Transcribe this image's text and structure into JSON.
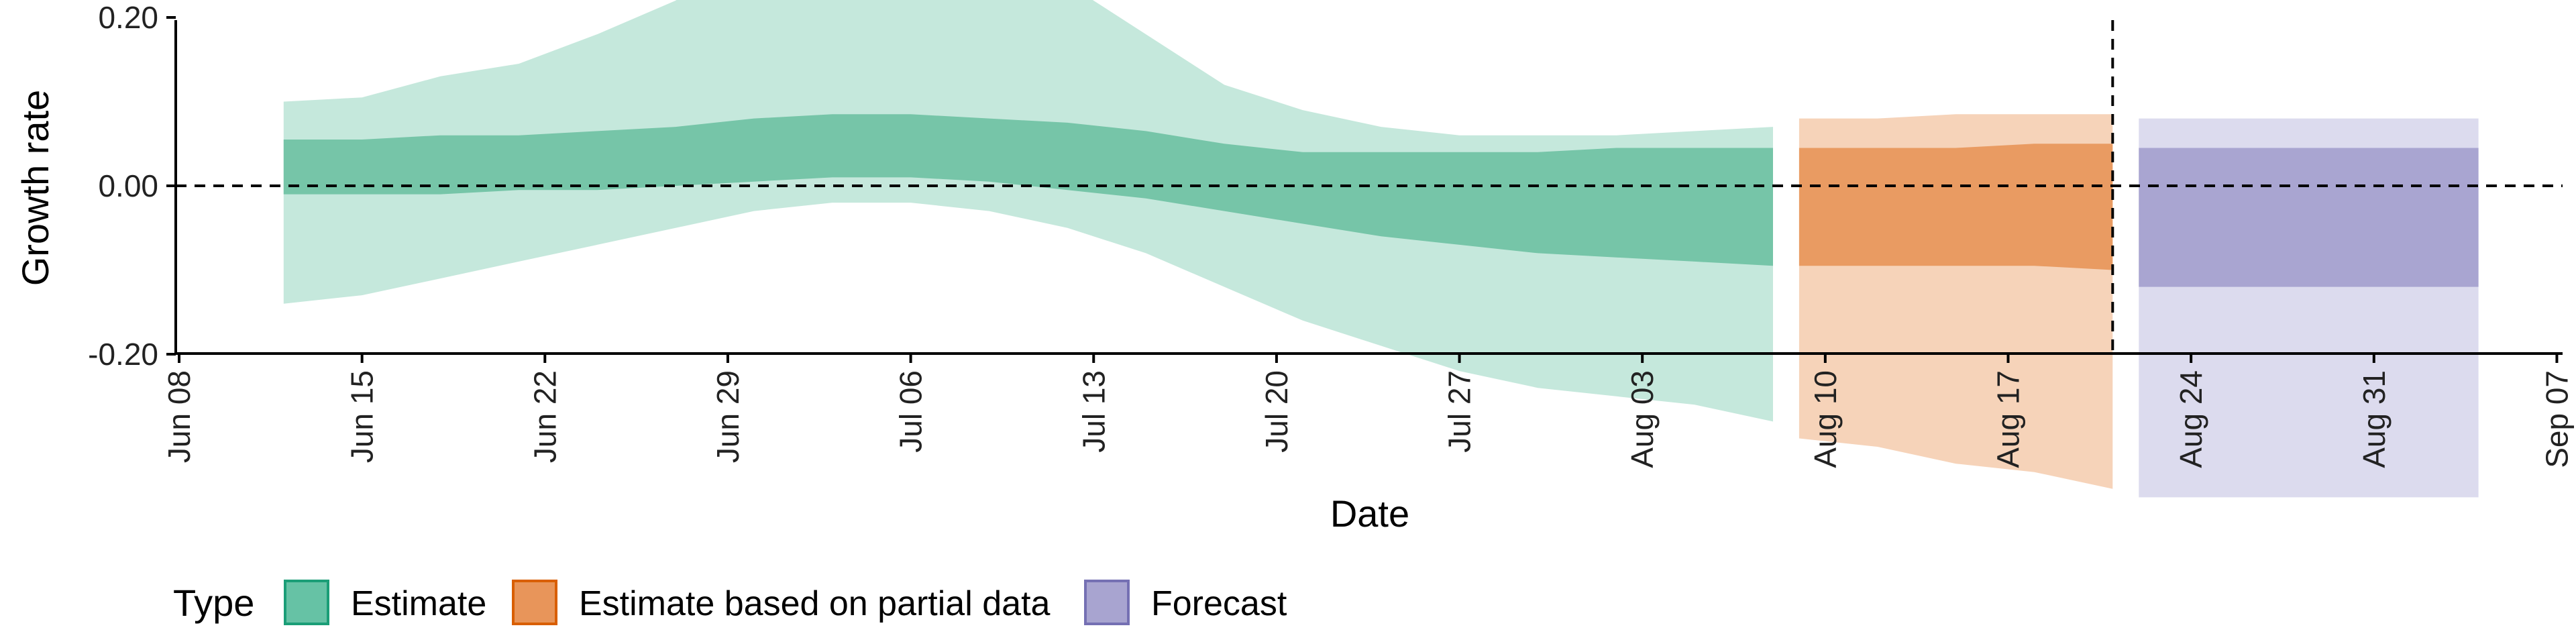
{
  "chart_data": {
    "type": "area",
    "xlabel": "Date",
    "ylabel": "Growth rate",
    "ylim": [
      -0.4,
      0.4
    ],
    "y_ticks": [
      {
        "value": 0.2,
        "label": "0.20"
      },
      {
        "value": 0.0,
        "label": "0.00"
      },
      {
        "value": -0.2,
        "label": "-0.20"
      }
    ],
    "x_ticks": [
      {
        "date": "2020-06-08",
        "label": "Jun 08"
      },
      {
        "date": "2020-06-15",
        "label": "Jun 15"
      },
      {
        "date": "2020-06-22",
        "label": "Jun 22"
      },
      {
        "date": "2020-06-29",
        "label": "Jun 29"
      },
      {
        "date": "2020-07-06",
        "label": "Jul 06"
      },
      {
        "date": "2020-07-13",
        "label": "Jul 13"
      },
      {
        "date": "2020-07-20",
        "label": "Jul 20"
      },
      {
        "date": "2020-07-27",
        "label": "Jul 27"
      },
      {
        "date": "2020-08-03",
        "label": "Aug 03"
      },
      {
        "date": "2020-08-10",
        "label": "Aug 10"
      },
      {
        "date": "2020-08-17",
        "label": "Aug 17"
      },
      {
        "date": "2020-08-24",
        "label": "Aug 24"
      },
      {
        "date": "2020-08-31",
        "label": "Aug 31"
      },
      {
        "date": "2020-09-07",
        "label": "Sep 07"
      }
    ],
    "xlim": [
      "2020-06-08",
      "2020-09-09"
    ],
    "reference_line_y": 0.0,
    "vertical_line_date": "2020-08-21",
    "legend": {
      "title": "Type",
      "position": "bottom-left",
      "entries": [
        {
          "label": "Estimate",
          "color": "#66c2a5",
          "border": "#1b9e77"
        },
        {
          "label": "Estimate based on partial data",
          "color": "#e8955a",
          "border": "#d95f02"
        },
        {
          "label": "Forecast",
          "color": "#a8a4d0",
          "border": "#7570b3"
        }
      ]
    },
    "series": [
      {
        "type": "Estimate",
        "outer_color": "#c5e8dc",
        "inner_color": "#76c5a8",
        "points": [
          {
            "date": "2020-06-12",
            "lo90": -0.14,
            "hi90": 0.1,
            "lo50": -0.01,
            "hi50": 0.055
          },
          {
            "date": "2020-06-15",
            "lo90": -0.13,
            "hi90": 0.105,
            "lo50": -0.01,
            "hi50": 0.055
          },
          {
            "date": "2020-06-18",
            "lo90": -0.11,
            "hi90": 0.13,
            "lo50": -0.01,
            "hi50": 0.06
          },
          {
            "date": "2020-06-21",
            "lo90": -0.09,
            "hi90": 0.145,
            "lo50": -0.005,
            "hi50": 0.06
          },
          {
            "date": "2020-06-24",
            "lo90": -0.07,
            "hi90": 0.18,
            "lo50": -0.005,
            "hi50": 0.065
          },
          {
            "date": "2020-06-27",
            "lo90": -0.05,
            "hi90": 0.22,
            "lo50": 0.0,
            "hi50": 0.07
          },
          {
            "date": "2020-06-30",
            "lo90": -0.03,
            "hi90": 0.29,
            "lo50": 0.005,
            "hi50": 0.08
          },
          {
            "date": "2020-07-03",
            "lo90": -0.02,
            "hi90": 0.35,
            "lo50": 0.01,
            "hi50": 0.085
          },
          {
            "date": "2020-07-06",
            "lo90": -0.02,
            "hi90": 0.35,
            "lo50": 0.01,
            "hi50": 0.085
          },
          {
            "date": "2020-07-09",
            "lo90": -0.03,
            "hi90": 0.3,
            "lo50": 0.005,
            "hi50": 0.08
          },
          {
            "date": "2020-07-12",
            "lo90": -0.05,
            "hi90": 0.24,
            "lo50": -0.005,
            "hi50": 0.075
          },
          {
            "date": "2020-07-15",
            "lo90": -0.08,
            "hi90": 0.18,
            "lo50": -0.015,
            "hi50": 0.065
          },
          {
            "date": "2020-07-18",
            "lo90": -0.12,
            "hi90": 0.12,
            "lo50": -0.03,
            "hi50": 0.05
          },
          {
            "date": "2020-07-21",
            "lo90": -0.16,
            "hi90": 0.09,
            "lo50": -0.045,
            "hi50": 0.04
          },
          {
            "date": "2020-07-24",
            "lo90": -0.19,
            "hi90": 0.07,
            "lo50": -0.06,
            "hi50": 0.04
          },
          {
            "date": "2020-07-27",
            "lo90": -0.22,
            "hi90": 0.06,
            "lo50": -0.07,
            "hi50": 0.04
          },
          {
            "date": "2020-07-30",
            "lo90": -0.24,
            "hi90": 0.06,
            "lo50": -0.08,
            "hi50": 0.04
          },
          {
            "date": "2020-08-02",
            "lo90": -0.25,
            "hi90": 0.06,
            "lo50": -0.085,
            "hi50": 0.045
          },
          {
            "date": "2020-08-05",
            "lo90": -0.26,
            "hi90": 0.065,
            "lo50": -0.09,
            "hi50": 0.045
          },
          {
            "date": "2020-08-08",
            "lo90": -0.28,
            "hi90": 0.07,
            "lo50": -0.095,
            "hi50": 0.045
          }
        ]
      },
      {
        "type": "Estimate based on partial data",
        "outer_color": "#f6d3b9",
        "inner_color": "#e99b62",
        "points": [
          {
            "date": "2020-08-09",
            "lo90": -0.3,
            "hi90": 0.08,
            "lo50": -0.095,
            "hi50": 0.045
          },
          {
            "date": "2020-08-12",
            "lo90": -0.31,
            "hi90": 0.08,
            "lo50": -0.095,
            "hi50": 0.045
          },
          {
            "date": "2020-08-15",
            "lo90": -0.33,
            "hi90": 0.085,
            "lo50": -0.095,
            "hi50": 0.045
          },
          {
            "date": "2020-08-18",
            "lo90": -0.34,
            "hi90": 0.085,
            "lo50": -0.095,
            "hi50": 0.05
          },
          {
            "date": "2020-08-21",
            "lo90": -0.36,
            "hi90": 0.085,
            "lo50": -0.1,
            "hi50": 0.05
          }
        ]
      },
      {
        "type": "Forecast",
        "outer_color": "#dcdbee",
        "inner_color": "#a9a5d1",
        "points": [
          {
            "date": "2020-08-22",
            "lo90": -0.37,
            "hi90": 0.08,
            "lo50": -0.12,
            "hi50": 0.045
          },
          {
            "date": "2020-09-04",
            "lo90": -0.37,
            "hi90": 0.08,
            "lo50": -0.12,
            "hi50": 0.045
          }
        ]
      }
    ]
  }
}
